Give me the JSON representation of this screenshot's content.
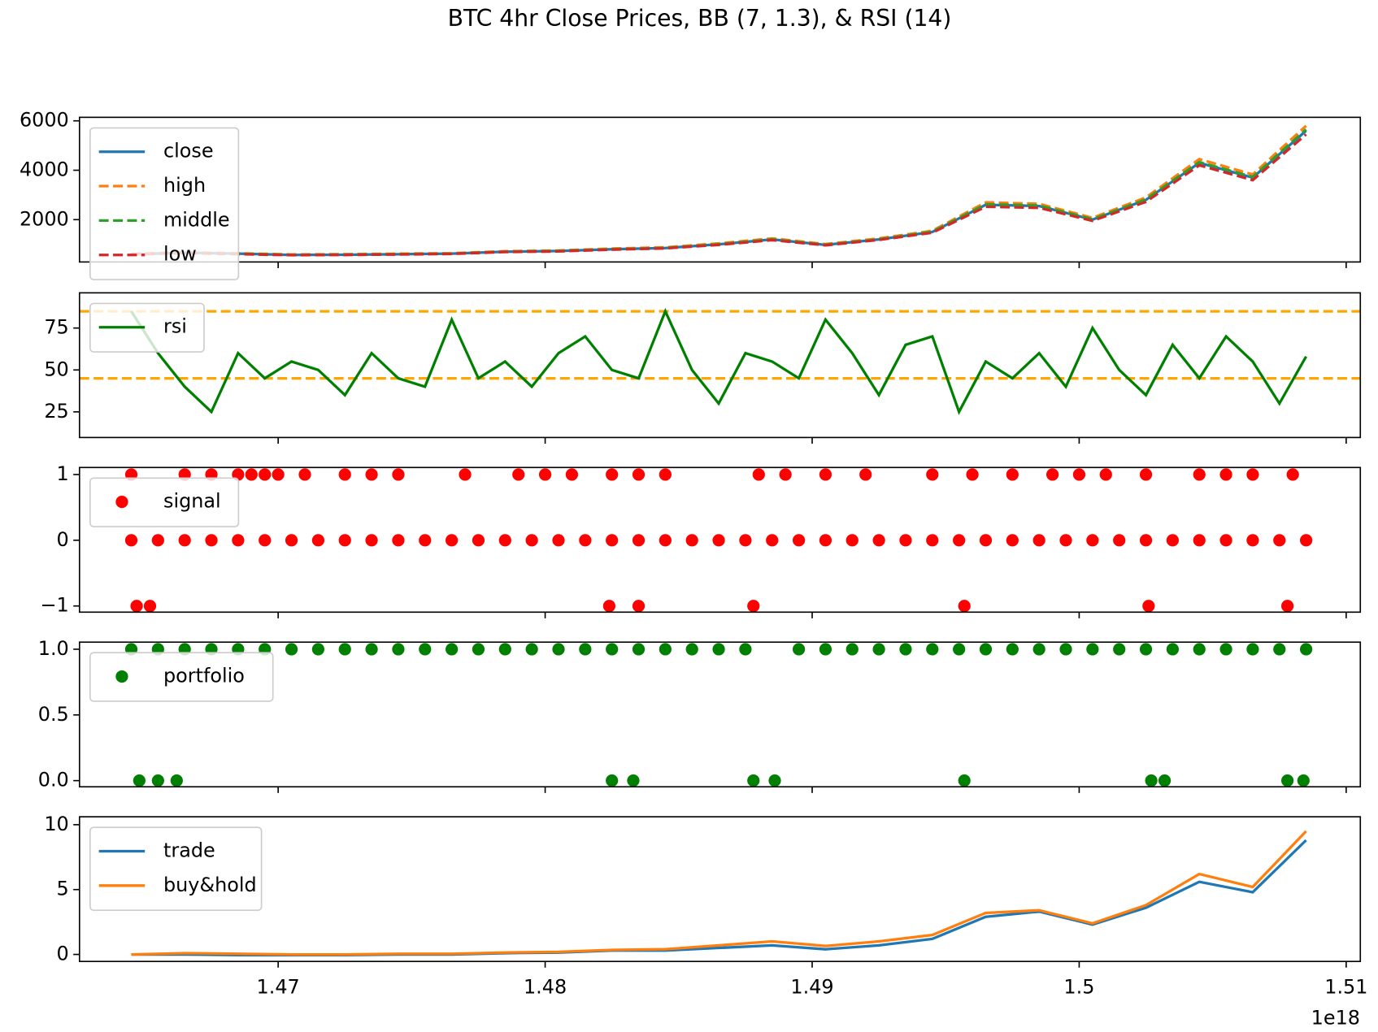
{
  "title": "BTC 4hr Close Prices, BB (7, 1.3), & RSI (14)",
  "x_offset_label": "1e18",
  "chart_data": [
    {
      "type": "line",
      "legend": "upper left",
      "x": [
        1.4645,
        1.4665,
        1.4685,
        1.4705,
        1.4725,
        1.4745,
        1.4765,
        1.4785,
        1.4805,
        1.4825,
        1.4845,
        1.4865,
        1.4885,
        1.4905,
        1.4925,
        1.4945,
        1.4965,
        1.4985,
        1.5005,
        1.5025,
        1.5045,
        1.5065,
        1.5085
      ],
      "series": [
        {
          "name": "close",
          "color": "#1f77b4",
          "style": "solid",
          "values": [
            600,
            660,
            620,
            570,
            580,
            600,
            620,
            700,
            730,
            800,
            850,
            1000,
            1200,
            980,
            1200,
            1500,
            2600,
            2550,
            2000,
            2800,
            4300,
            3700,
            5600
          ]
        },
        {
          "name": "high",
          "color": "#ff7f0e",
          "style": "dashed",
          "values": [
            620,
            680,
            640,
            590,
            600,
            620,
            640,
            720,
            750,
            830,
            880,
            1040,
            1240,
            1010,
            1240,
            1550,
            2700,
            2640,
            2070,
            2900,
            4450,
            3830,
            5800
          ]
        },
        {
          "name": "middle",
          "color": "#2ca02c",
          "style": "dashed",
          "values": [
            605,
            665,
            625,
            575,
            585,
            605,
            625,
            705,
            735,
            805,
            855,
            1005,
            1205,
            985,
            1205,
            1510,
            2620,
            2570,
            2015,
            2820,
            4330,
            3730,
            5650
          ]
        },
        {
          "name": "low",
          "color": "#d62728",
          "style": "dashed",
          "values": [
            590,
            645,
            605,
            560,
            570,
            590,
            610,
            690,
            715,
            785,
            835,
            980,
            1170,
            960,
            1180,
            1470,
            2520,
            2480,
            1950,
            2720,
            4200,
            3600,
            5450
          ]
        }
      ],
      "xlim": [
        1.46256,
        1.51053
      ],
      "xticks": [
        1.47,
        1.48,
        1.49,
        1.5,
        1.51
      ],
      "ylim": [
        286,
        6143
      ],
      "yticks": [
        2000,
        4000,
        6000
      ]
    },
    {
      "type": "line",
      "legend": "upper left",
      "x": [
        1.4645,
        1.4655,
        1.4665,
        1.4675,
        1.4685,
        1.4695,
        1.4705,
        1.4715,
        1.4725,
        1.4735,
        1.4745,
        1.4755,
        1.4765,
        1.4775,
        1.4785,
        1.4795,
        1.4805,
        1.4815,
        1.4825,
        1.4835,
        1.4845,
        1.4855,
        1.4865,
        1.4875,
        1.4885,
        1.4895,
        1.4905,
        1.4915,
        1.4925,
        1.4935,
        1.4945,
        1.4955,
        1.4965,
        1.4975,
        1.4985,
        1.4995,
        1.5005,
        1.5015,
        1.5025,
        1.5035,
        1.5045,
        1.5055,
        1.5065,
        1.5075,
        1.5085
      ],
      "series": [
        {
          "name": "rsi",
          "color": "#008000",
          "style": "solid",
          "values": [
            85,
            60,
            40,
            25,
            60,
            45,
            55,
            50,
            35,
            60,
            45,
            40,
            80,
            45,
            55,
            40,
            60,
            70,
            50,
            45,
            85,
            50,
            30,
            60,
            55,
            45,
            80,
            60,
            35,
            65,
            70,
            25,
            55,
            45,
            60,
            40,
            75,
            50,
            35,
            65,
            45,
            70,
            55,
            30,
            58
          ]
        }
      ],
      "hlines": [
        {
          "value": 85,
          "color": "orange"
        },
        {
          "value": 45,
          "color": "orange"
        }
      ],
      "xlim": [
        1.46256,
        1.51053
      ],
      "xticks": [
        1.47,
        1.48,
        1.49,
        1.5,
        1.51
      ],
      "ylim": [
        9.7,
        96
      ],
      "yticks": [
        25,
        50,
        75
      ]
    },
    {
      "type": "scatter",
      "legend": "upper left",
      "series": [
        {
          "name": "signal",
          "color": "red",
          "x": [
            1.4645,
            1.4665,
            1.4675,
            1.4685,
            1.469,
            1.4695,
            1.47,
            1.471,
            1.4725,
            1.4735,
            1.4745,
            1.477,
            1.479,
            1.48,
            1.481,
            1.4825,
            1.4835,
            1.4845,
            1.488,
            1.489,
            1.4905,
            1.492,
            1.4945,
            1.496,
            1.4975,
            1.499,
            1.5,
            1.501,
            1.5025,
            1.5045,
            1.5055,
            1.5065,
            1.508,
            1.4647,
            1.4652,
            1.4824,
            1.4835,
            1.4878,
            1.4957,
            1.5026,
            1.5078,
            1.4645,
            1.4655,
            1.4665,
            1.4675,
            1.4685,
            1.4695,
            1.4705,
            1.4715,
            1.4725,
            1.4735,
            1.4745,
            1.4755,
            1.4765,
            1.4775,
            1.4785,
            1.4795,
            1.4805,
            1.4815,
            1.4825,
            1.4835,
            1.4845,
            1.4855,
            1.4865,
            1.4875,
            1.4885,
            1.4895,
            1.4905,
            1.4915,
            1.4925,
            1.4935,
            1.4945,
            1.4955,
            1.4965,
            1.4975,
            1.4985,
            1.4995,
            1.5005,
            1.5015,
            1.5025,
            1.5035,
            1.5045,
            1.5055,
            1.5065,
            1.5075,
            1.5085
          ],
          "values": [
            1,
            1,
            1,
            1,
            1,
            1,
            1,
            1,
            1,
            1,
            1,
            1,
            1,
            1,
            1,
            1,
            1,
            1,
            1,
            1,
            1,
            1,
            1,
            1,
            1,
            1,
            1,
            1,
            1,
            1,
            1,
            1,
            1,
            -1,
            -1,
            -1,
            -1,
            -1,
            -1,
            -1,
            -1,
            0,
            0,
            0,
            0,
            0,
            0,
            0,
            0,
            0,
            0,
            0,
            0,
            0,
            0,
            0,
            0,
            0,
            0,
            0,
            0,
            0,
            0,
            0,
            0,
            0,
            0,
            0,
            0,
            0,
            0,
            0,
            0,
            0,
            0,
            0,
            0,
            0,
            0,
            0,
            0,
            0,
            0,
            0,
            0,
            0
          ]
        }
      ],
      "xlim": [
        1.46256,
        1.51053
      ],
      "xticks": [
        1.47,
        1.48,
        1.49,
        1.5,
        1.51
      ],
      "ylim": [
        -1.094,
        1.107
      ],
      "yticks": [
        {
          "value": -1,
          "label": "−1"
        },
        0,
        1
      ]
    },
    {
      "type": "scatter",
      "legend": "upper left",
      "series": [
        {
          "name": "portfolio",
          "color": "green",
          "x": [
            1.4645,
            1.4655,
            1.4665,
            1.4675,
            1.4685,
            1.4695,
            1.4705,
            1.4715,
            1.4725,
            1.4735,
            1.4745,
            1.4755,
            1.4765,
            1.4775,
            1.4785,
            1.4795,
            1.4805,
            1.4815,
            1.4825,
            1.4835,
            1.4845,
            1.4855,
            1.4865,
            1.4875,
            1.4895,
            1.4905,
            1.4915,
            1.4925,
            1.4935,
            1.4945,
            1.4955,
            1.4965,
            1.4975,
            1.4985,
            1.4995,
            1.5005,
            1.5015,
            1.5025,
            1.5035,
            1.5045,
            1.5055,
            1.5065,
            1.5075,
            1.5085,
            1.4648,
            1.4655,
            1.4662,
            1.4825,
            1.4833,
            1.4878,
            1.4886,
            1.4957,
            1.5027,
            1.5032,
            1.5078,
            1.5084
          ],
          "values": [
            1,
            1,
            1,
            1,
            1,
            1,
            1,
            1,
            1,
            1,
            1,
            1,
            1,
            1,
            1,
            1,
            1,
            1,
            1,
            1,
            1,
            1,
            1,
            1,
            1,
            1,
            1,
            1,
            1,
            1,
            1,
            1,
            1,
            1,
            1,
            1,
            1,
            1,
            1,
            1,
            1,
            1,
            1,
            1,
            0,
            0,
            0,
            0,
            0,
            0,
            0,
            0,
            0,
            0,
            0,
            0
          ]
        }
      ],
      "xlim": [
        1.46256,
        1.51053
      ],
      "xticks": [
        1.47,
        1.48,
        1.49,
        1.5,
        1.51
      ],
      "ylim": [
        -0.047,
        1.054
      ],
      "yticks": [
        {
          "value": 0,
          "label": "0.0"
        },
        0.5,
        {
          "value": 1,
          "label": "1.0"
        }
      ]
    },
    {
      "type": "line",
      "legend": "upper left",
      "show_xtick_labels": true,
      "x": [
        1.4645,
        1.4665,
        1.4685,
        1.4705,
        1.4725,
        1.4745,
        1.4765,
        1.4785,
        1.4805,
        1.4825,
        1.4845,
        1.4865,
        1.4885,
        1.4905,
        1.4925,
        1.4945,
        1.4965,
        1.4985,
        1.5005,
        1.5025,
        1.5045,
        1.5065,
        1.5085
      ],
      "series": [
        {
          "name": "trade",
          "color": "#1f77b4",
          "style": "solid",
          "values": [
            0,
            0,
            -0.05,
            -0.05,
            -0.05,
            0,
            0,
            0.1,
            0.15,
            0.3,
            0.3,
            0.5,
            0.7,
            0.4,
            0.7,
            1.2,
            2.9,
            3.3,
            2.3,
            3.6,
            5.6,
            4.8,
            8.8
          ]
        },
        {
          "name": "buy&hold",
          "color": "#ff7f0e",
          "style": "solid",
          "values": [
            0,
            0.1,
            0.05,
            0,
            0,
            0.05,
            0.05,
            0.15,
            0.2,
            0.35,
            0.4,
            0.7,
            1,
            0.65,
            1,
            1.5,
            3.2,
            3.4,
            2.4,
            3.8,
            6.2,
            5.2,
            9.5
          ]
        }
      ],
      "xlim": [
        1.46256,
        1.51053
      ],
      "xticks": [
        1.47,
        1.48,
        1.49,
        1.5,
        1.51
      ],
      "ylim": [
        -0.54,
        10.61
      ],
      "yticks": [
        0,
        5,
        10
      ]
    }
  ]
}
